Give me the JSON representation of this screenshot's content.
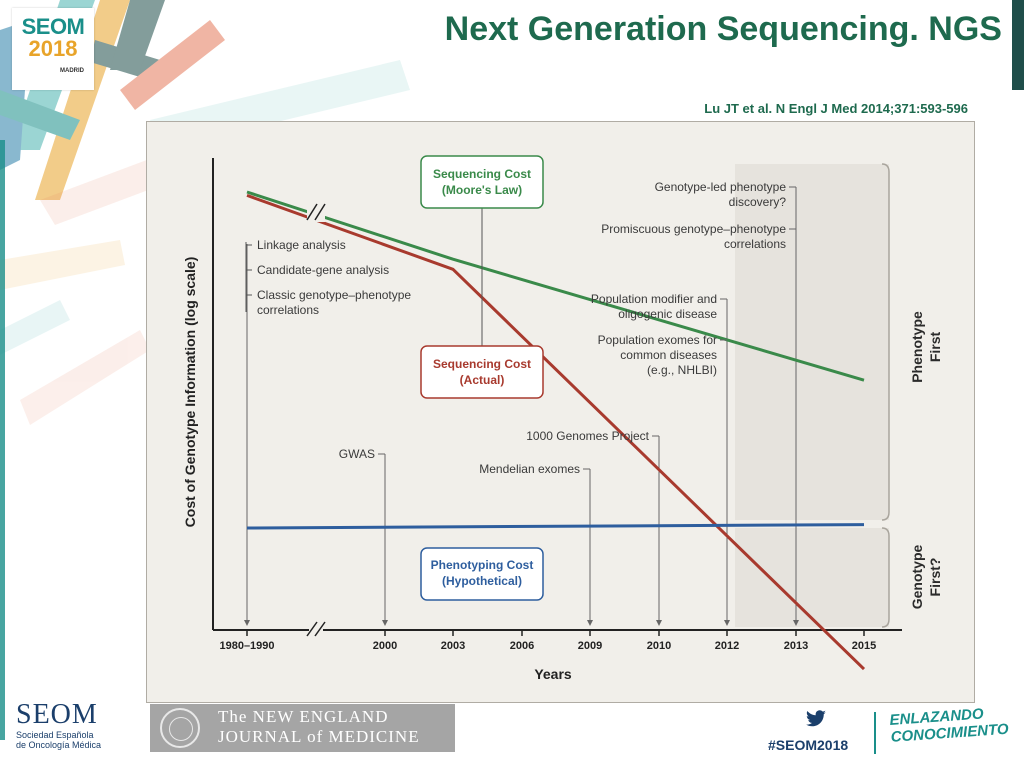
{
  "slide": {
    "title": "Next Generation Sequencing. NGS",
    "citation": "Lu JT et al. N Engl J Med 2014;371:593-596"
  },
  "logo": {
    "brand": "SEOM",
    "year": "2018",
    "city": "MADRID"
  },
  "footer": {
    "org_name": "SEOM",
    "org_subtitle_1": "Sociedad Española",
    "org_subtitle_2": "de Oncología Médica",
    "journal_line1": "The NEW ENGLAND",
    "journal_line2": "JOURNAL of MEDICINE",
    "hashtag": "#SEOM2018",
    "tagline_1": "ENLAZANDO",
    "tagline_2": "CONOCIMIENTO",
    "social_icon": "twitter-bird-icon"
  },
  "chart_data": {
    "type": "line",
    "xlabel": "Years",
    "ylabel": "Cost of Genotype Information (log scale)",
    "x_ticks": [
      "1980–1990",
      "2000",
      "2003",
      "2006",
      "2009",
      "2010",
      "2012",
      "2013",
      "2015"
    ],
    "axis_break": "between 1980–1990 and 2000",
    "series": [
      {
        "name": "Sequencing Cost (Moore's Law)",
        "color": "#3a8a4a",
        "points": [
          [
            "1980–1990",
            1.0
          ],
          [
            "2003",
            0.8
          ],
          [
            "2015",
            0.44
          ]
        ]
      },
      {
        "name": "Sequencing Cost (Actual)",
        "color": "#a83a2e",
        "points": [
          [
            "1980–1990",
            0.99
          ],
          [
            "2003",
            0.77
          ],
          [
            "2015",
            -0.42
          ]
        ]
      },
      {
        "name": "Phenotyping Cost (Hypothetical)",
        "color": "#2e5e9e",
        "points": [
          [
            "1980–1990",
            0.0
          ],
          [
            "2015",
            0.01
          ]
        ]
      }
    ],
    "series_labels": [
      {
        "line1": "Sequencing Cost",
        "line2": "(Moore's Law)"
      },
      {
        "line1": "Sequencing Cost",
        "line2": "(Actual)"
      },
      {
        "line1": "Phenotyping Cost",
        "line2": "(Hypothetical)"
      }
    ],
    "annotations_left": [
      {
        "lines": [
          "Linkage analysis"
        ]
      },
      {
        "lines": [
          "Candidate-gene analysis"
        ]
      },
      {
        "lines": [
          "Classic genotype–phenotype",
          "correlations"
        ]
      }
    ],
    "annotations_tick": [
      {
        "year": "2000",
        "lines": [
          "GWAS"
        ]
      },
      {
        "year": "2009",
        "lines": [
          "Mendelian exomes"
        ]
      },
      {
        "year": "2010",
        "lines": [
          "1000 Genomes Project"
        ]
      },
      {
        "year": "2012",
        "lines": [
          "Population modifier and",
          "oligogenic disease"
        ]
      },
      {
        "year": "2012",
        "lines": [
          "Population exomes for",
          "common diseases",
          "(e.g., NHLBI)"
        ]
      },
      {
        "year": "2013",
        "lines": [
          "Genotype-led phenotype",
          "discovery?"
        ]
      },
      {
        "year": "2013",
        "lines": [
          "Promiscuous genotype–phenotype",
          "correlations"
        ]
      }
    ],
    "regions": [
      {
        "line1": "Phenotype",
        "line2": "First"
      },
      {
        "line1": "Genotype",
        "line2": "First?"
      }
    ]
  }
}
